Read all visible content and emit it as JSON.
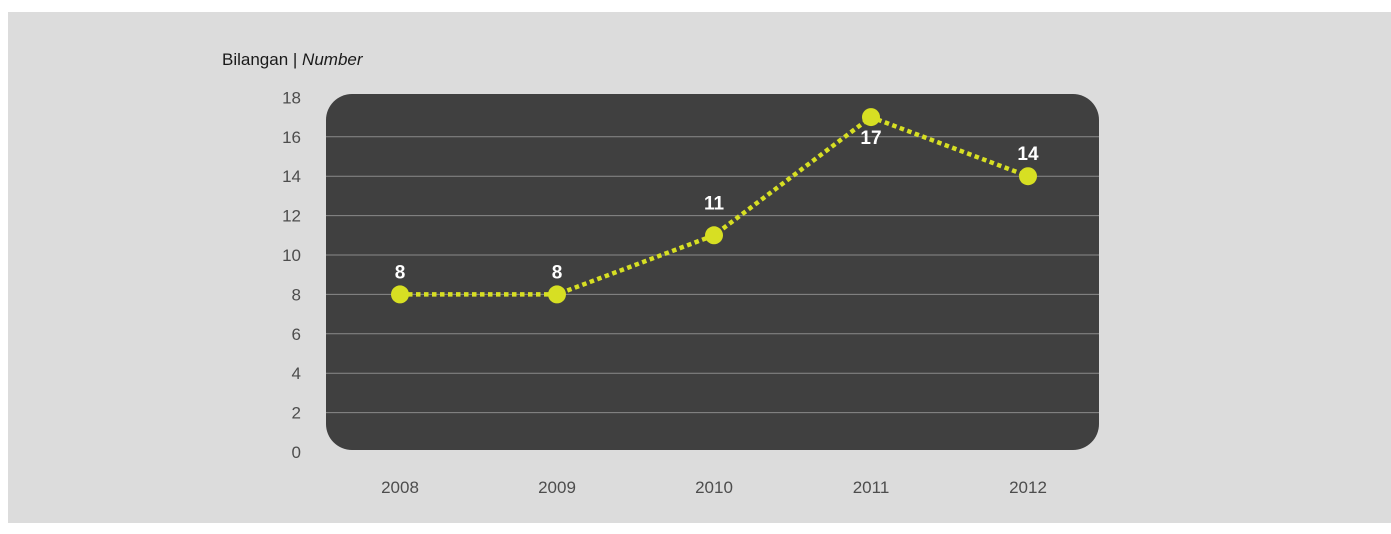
{
  "chart_data": {
    "type": "line",
    "ylabel": "Bilangan",
    "ylabel_separator": " | ",
    "ylabel_en": "Number",
    "xlabel": "",
    "categories": [
      "2008",
      "2009",
      "2010",
      "2011",
      "2012"
    ],
    "series": [
      {
        "values": [
          8,
          8,
          11,
          17,
          14
        ],
        "data_labels": [
          "8",
          "8",
          "11",
          "17",
          "14"
        ],
        "color": "#d7df23",
        "line_style": "dotted"
      }
    ],
    "ylim": [
      0,
      18
    ],
    "yticks": [
      "0",
      "2",
      "4",
      "6",
      "8",
      "10",
      "12",
      "14",
      "16",
      "18"
    ],
    "grid": true,
    "plot_background": "#404040",
    "page_background": "#dcdcdc",
    "gridline_color": "#8a8a8a",
    "label_color": "#ffffff"
  }
}
